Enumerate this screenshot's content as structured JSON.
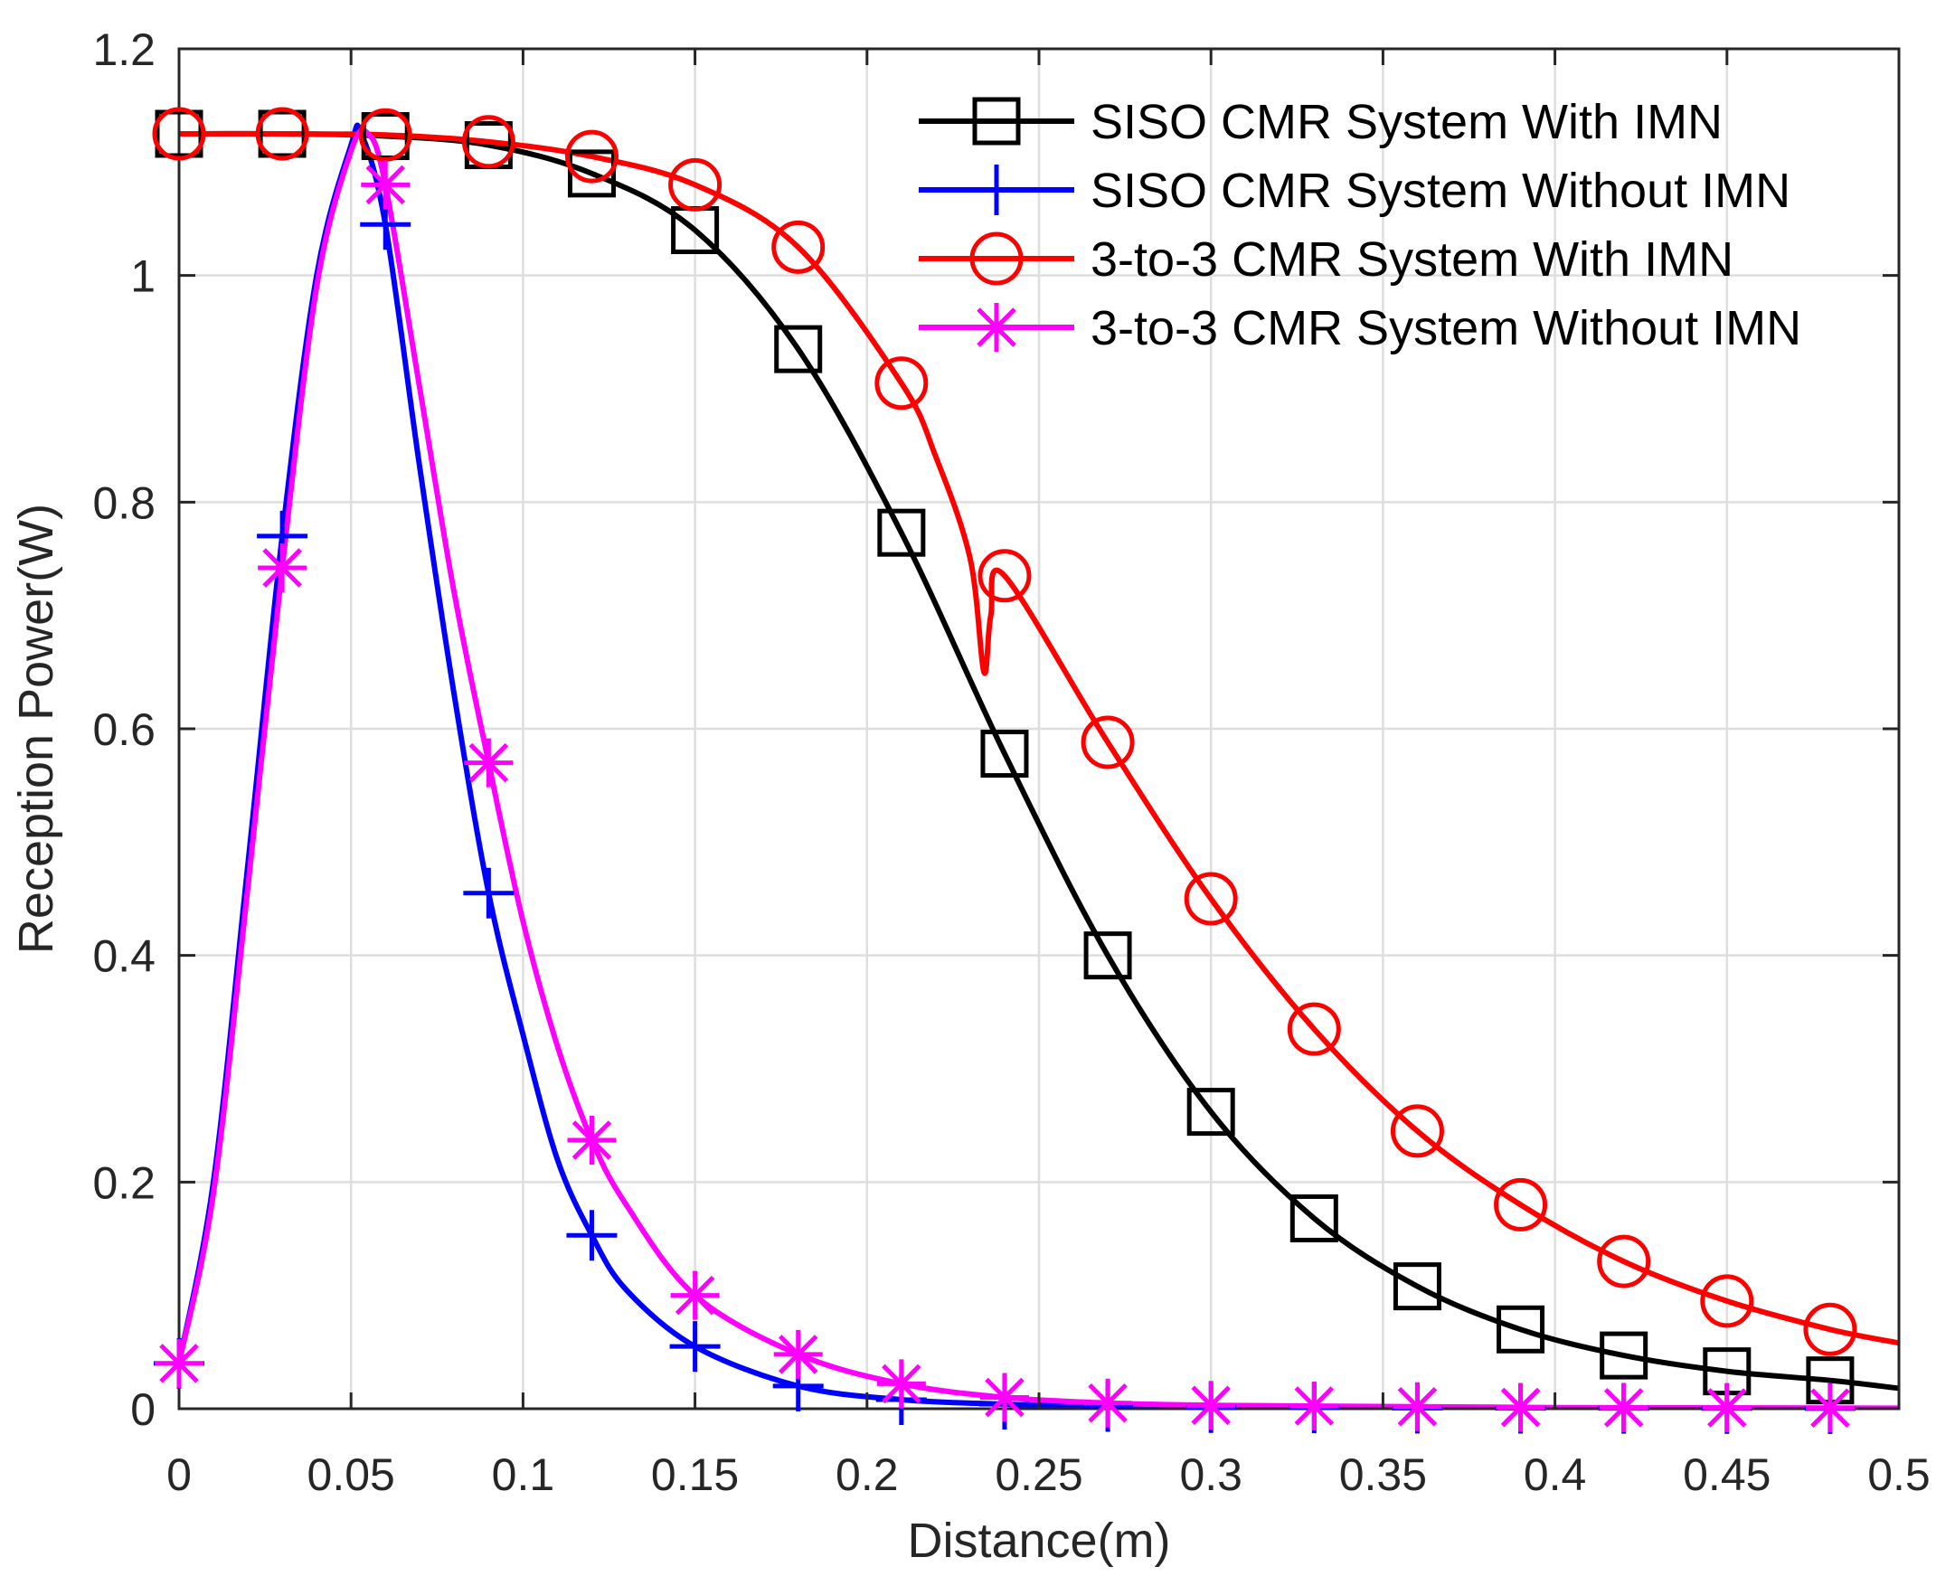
{
  "chart_data": {
    "type": "line",
    "title": "",
    "xlabel": "Distance(m)",
    "ylabel": "Reception Power(W)",
    "xlim": [
      0,
      0.5
    ],
    "ylim": [
      0,
      1.2
    ],
    "xticks": [
      0,
      0.05,
      0.1,
      0.15,
      0.2,
      0.25,
      0.3,
      0.35,
      0.4,
      0.45,
      0.5
    ],
    "xtick_labels": [
      "0",
      "0.05",
      "0.1",
      "0.15",
      "0.2",
      "0.25",
      "0.3",
      "0.35",
      "0.4",
      "0.45",
      "0.5"
    ],
    "yticks": [
      0,
      0.2,
      0.4,
      0.6,
      0.8,
      1,
      1.2
    ],
    "ytick_labels": [
      "0",
      "0.2",
      "0.4",
      "0.6",
      "0.8",
      "1",
      "1.2"
    ],
    "grid": true,
    "legend_position": "top-right",
    "series": [
      {
        "name": "SISO CMR System With IMN",
        "color": "#000000",
        "marker": "square",
        "x": [
          0,
          0.03,
          0.06,
          0.09,
          0.12,
          0.15,
          0.18,
          0.21,
          0.24,
          0.27,
          0.3,
          0.33,
          0.36,
          0.39,
          0.42,
          0.45,
          0.48,
          0.5
        ],
        "y": [
          1.125,
          1.125,
          1.123,
          1.115,
          1.09,
          1.04,
          0.935,
          0.773,
          0.578,
          0.4,
          0.262,
          0.168,
          0.108,
          0.07,
          0.047,
          0.033,
          0.025,
          0.018
        ],
        "marker_x": [
          0,
          0.03,
          0.06,
          0.09,
          0.12,
          0.15,
          0.18,
          0.21,
          0.24,
          0.27,
          0.3,
          0.33,
          0.36,
          0.39,
          0.42,
          0.45,
          0.48
        ]
      },
      {
        "name": "SISO CMR System Without IMN",
        "color": "#0000ff",
        "marker": "plus",
        "x": [
          0,
          0.01,
          0.02,
          0.03,
          0.04,
          0.05,
          0.053,
          0.06,
          0.07,
          0.08,
          0.09,
          0.1,
          0.11,
          0.12,
          0.13,
          0.15,
          0.18,
          0.21,
          0.24,
          0.27,
          0.3,
          0.35,
          0.4,
          0.45,
          0.5
        ],
        "y": [
          0.04,
          0.2,
          0.48,
          0.77,
          1.0,
          1.115,
          1.125,
          1.045,
          0.83,
          0.63,
          0.455,
          0.33,
          0.22,
          0.153,
          0.105,
          0.055,
          0.02,
          0.008,
          0.004,
          0.002,
          0.001,
          0.0006,
          0.0003,
          0.0002,
          0.0001
        ],
        "marker_x": [
          0,
          0.03,
          0.06,
          0.09,
          0.12,
          0.15,
          0.18,
          0.21,
          0.24,
          0.27,
          0.3,
          0.33,
          0.36,
          0.39,
          0.42,
          0.45,
          0.48
        ]
      },
      {
        "name": "3-to-3 CMR System With IMN",
        "color": "#ff0000",
        "marker": "circle",
        "x": [
          0,
          0.03,
          0.06,
          0.09,
          0.12,
          0.15,
          0.18,
          0.21,
          0.22,
          0.23,
          0.234,
          0.236,
          0.24,
          0.27,
          0.3,
          0.33,
          0.36,
          0.39,
          0.42,
          0.45,
          0.48,
          0.5
        ],
        "y": [
          1.125,
          1.125,
          1.124,
          1.118,
          1.105,
          1.08,
          1.025,
          0.905,
          0.84,
          0.75,
          0.65,
          0.7,
          0.735,
          0.588,
          0.45,
          0.335,
          0.245,
          0.18,
          0.13,
          0.095,
          0.07,
          0.058
        ],
        "marker_x": [
          0,
          0.03,
          0.06,
          0.09,
          0.12,
          0.15,
          0.18,
          0.21,
          0.24,
          0.27,
          0.3,
          0.33,
          0.36,
          0.39,
          0.42,
          0.45,
          0.48
        ]
      },
      {
        "name": "3-to-3 CMR System Without IMN",
        "color": "#ff00ff",
        "marker": "asterisk",
        "x": [
          0,
          0.01,
          0.02,
          0.03,
          0.04,
          0.05,
          0.055,
          0.06,
          0.07,
          0.08,
          0.09,
          0.1,
          0.11,
          0.12,
          0.13,
          0.15,
          0.18,
          0.21,
          0.24,
          0.27,
          0.3,
          0.35,
          0.4,
          0.45,
          0.5
        ],
        "y": [
          0.04,
          0.19,
          0.46,
          0.742,
          0.99,
          1.11,
          1.125,
          1.08,
          0.9,
          0.72,
          0.57,
          0.43,
          0.32,
          0.237,
          0.18,
          0.1,
          0.048,
          0.022,
          0.01,
          0.005,
          0.003,
          0.002,
          0.001,
          0.0008,
          0.0005
        ],
        "marker_x": [
          0,
          0.03,
          0.06,
          0.09,
          0.12,
          0.15,
          0.18,
          0.21,
          0.24,
          0.27,
          0.3,
          0.33,
          0.36,
          0.39,
          0.42,
          0.45,
          0.48
        ]
      }
    ]
  }
}
